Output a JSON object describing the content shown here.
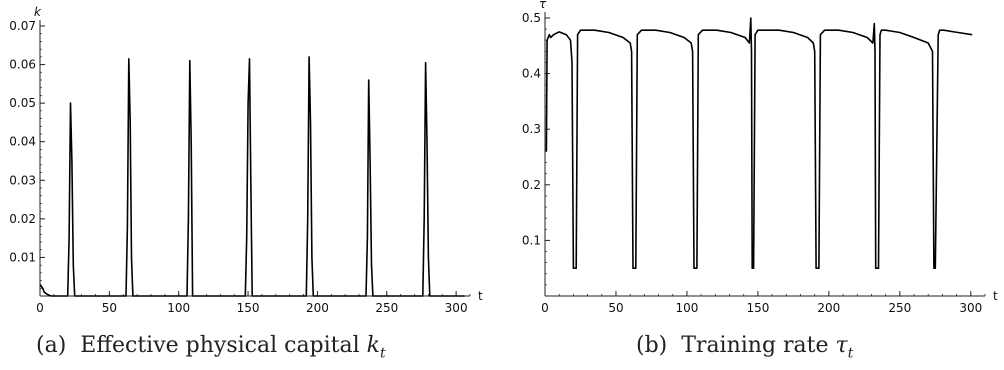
{
  "captions": {
    "a": {
      "label": "(a)",
      "text": "Effective physical capital",
      "symbol": "k",
      "sub": "t"
    },
    "b": {
      "label": "(b)",
      "text": "Training rate",
      "symbol": "τ",
      "sub": "t"
    }
  },
  "chart_data": [
    {
      "type": "line",
      "xlabel": "t",
      "ylabel": "k",
      "xlim": [
        0,
        310
      ],
      "ylim": [
        0,
        0.07
      ],
      "xticks": [
        0,
        50,
        100,
        150,
        200,
        250,
        300
      ],
      "yticks": [
        0.01,
        0.02,
        0.03,
        0.04,
        0.05,
        0.06,
        0.07
      ],
      "ytick_labels": [
        "0.01",
        "0.02",
        "0.03",
        "0.04",
        "0.05",
        "0.06",
        "0.07"
      ],
      "series": [
        {
          "x": [
            0,
            1,
            2,
            3,
            5,
            6,
            8,
            20,
            21,
            22,
            23,
            24,
            25,
            62,
            63,
            64,
            65,
            66,
            67,
            106,
            107,
            108,
            109,
            110,
            148,
            149,
            150,
            151,
            152,
            153,
            192,
            193,
            194,
            195,
            196,
            197,
            235,
            236,
            237,
            238,
            239,
            240,
            276,
            277,
            278,
            279,
            280,
            281,
            306
          ],
          "y": [
            0.003,
            0.0025,
            0.002,
            0.001,
            0.0005,
            0.0003,
            0,
            0,
            0.015,
            0.05,
            0.035,
            0.008,
            0,
            0,
            0.018,
            0.0615,
            0.045,
            0.01,
            0,
            0,
            0.02,
            0.061,
            0.04,
            0,
            0,
            0.015,
            0.05,
            0.0615,
            0.03,
            0,
            0,
            0.02,
            0.062,
            0.045,
            0.01,
            0,
            0,
            0.015,
            0.056,
            0.035,
            0.008,
            0,
            0,
            0.02,
            0.0605,
            0.04,
            0.01,
            0,
            0
          ]
        }
      ]
    },
    {
      "type": "line",
      "xlabel": "t",
      "ylabel": "τ",
      "xlim": [
        0,
        310
      ],
      "ylim": [
        0,
        0.5
      ],
      "xticks": [
        0,
        50,
        100,
        150,
        200,
        250,
        300
      ],
      "yticks": [
        0.1,
        0.2,
        0.3,
        0.4,
        0.5
      ],
      "ytick_labels": [
        "0.1",
        "0.2",
        "0.3",
        "0.4",
        "0.5"
      ],
      "series": [
        {
          "x": [
            1,
            1.5,
            3,
            4,
            6,
            10,
            15,
            18,
            19,
            20,
            22,
            23,
            25,
            35,
            45,
            55,
            60,
            61,
            62,
            64,
            65,
            68,
            78,
            88,
            98,
            103,
            104,
            105,
            107,
            108,
            111,
            121,
            131,
            141,
            144,
            145,
            145.5,
            146,
            147,
            148,
            150,
            151,
            155,
            165,
            175,
            185,
            189,
            190,
            191,
            193,
            194,
            197,
            207,
            217,
            227,
            231,
            232,
            232.5,
            233,
            235,
            236,
            237,
            240,
            250,
            260,
            270,
            273,
            274,
            275,
            277,
            278,
            281,
            291,
            301
          ],
          "y": [
            0.26,
            0.46,
            0.47,
            0.465,
            0.47,
            0.475,
            0.47,
            0.46,
            0.42,
            0.05,
            0.05,
            0.47,
            0.478,
            0.478,
            0.474,
            0.465,
            0.455,
            0.44,
            0.05,
            0.05,
            0.47,
            0.478,
            0.478,
            0.474,
            0.465,
            0.455,
            0.44,
            0.05,
            0.05,
            0.47,
            0.478,
            0.478,
            0.474,
            0.465,
            0.455,
            0.5,
            0.44,
            0.05,
            0.05,
            0.47,
            0.478,
            0.478,
            0.478,
            0.478,
            0.474,
            0.465,
            0.455,
            0.44,
            0.05,
            0.05,
            0.47,
            0.478,
            0.478,
            0.474,
            0.465,
            0.455,
            0.49,
            0.44,
            0.05,
            0.05,
            0.47,
            0.478,
            0.478,
            0.474,
            0.465,
            0.455,
            0.44,
            0.05,
            0.05,
            0.47,
            0.478,
            0.478,
            0.474,
            0.47
          ]
        }
      ]
    }
  ]
}
